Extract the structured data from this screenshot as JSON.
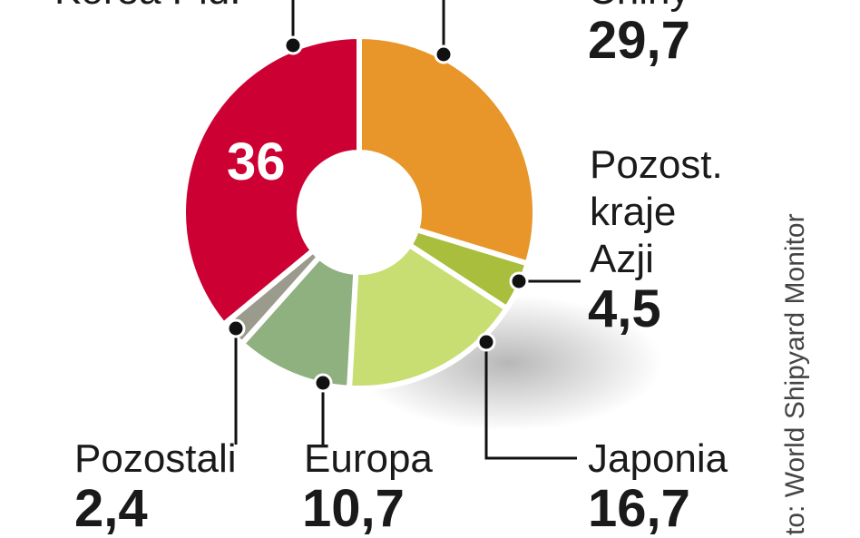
{
  "chart_data": {
    "type": "pie",
    "donut": true,
    "slices": [
      {
        "label": "Chiny",
        "value": 29.7,
        "display": "29,7",
        "color": "#e8962a"
      },
      {
        "label": "Pozost. kraje Azji",
        "value": 4.5,
        "display": "4,5",
        "color": "#a9be3c"
      },
      {
        "label": "Japonia",
        "value": 16.7,
        "display": "16,7",
        "color": "#c8dd72"
      },
      {
        "label": "Europa",
        "value": 10.7,
        "display": "10,7",
        "color": "#8fb07f"
      },
      {
        "label": "Pozostali",
        "value": 2.4,
        "display": "2,4",
        "color": "#9a9b8c"
      },
      {
        "label": "Korea Płd.",
        "value": 36,
        "display": "36",
        "color": "#cc0033"
      }
    ],
    "source": "to: World Shipyard Monitor"
  },
  "labels": {
    "korea": "Korea Płd.",
    "chiny": "Chiny",
    "azja_1": "Pozost.",
    "azja_2": "kraje",
    "azja_3": "Azji"
  }
}
